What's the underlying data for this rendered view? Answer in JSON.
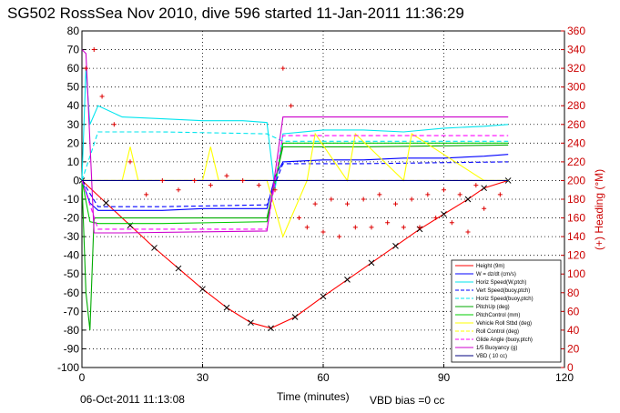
{
  "chart_data": {
    "type": "line",
    "title": "SG502 RossSea Nov 2010, dive 596 started 11-Jan-2011 11:36:29",
    "xlabel": "Time (minutes)",
    "ylabel": "",
    "y2label": "(+) Heading (°M)",
    "footer_left": "06-Oct-2011 11:13:08",
    "footer_right": "VBD bias =0 cc",
    "xlim": [
      0,
      120
    ],
    "ylim": [
      -100,
      80
    ],
    "y2lim": [
      0,
      360
    ],
    "xticks": [
      "0",
      "30",
      "60",
      "90",
      "120"
    ],
    "yticks": [
      "80",
      "70",
      "60",
      "50",
      "40",
      "30",
      "20",
      "10",
      "0",
      "-10",
      "-20",
      "-30",
      "-40",
      "-50",
      "-60",
      "-70",
      "-80",
      "-90",
      "-100"
    ],
    "y2ticks": [
      "360",
      "340",
      "320",
      "300",
      "280",
      "260",
      "240",
      "220",
      "200",
      "180",
      "160",
      "140",
      "120",
      "100",
      "80",
      "60",
      "40",
      "20",
      "0"
    ],
    "grid": true,
    "legend_position": "bottom-right",
    "series": [
      {
        "name": "Height (9m)",
        "color": "#ff0000",
        "style": "solid-marker",
        "x": [
          0,
          6,
          12,
          18,
          24,
          30,
          36,
          42,
          47,
          53,
          60,
          66,
          72,
          78,
          84,
          90,
          96,
          100,
          106
        ],
        "y": [
          0,
          -12,
          -24,
          -36,
          -47,
          -58,
          -68,
          -76,
          -79,
          -73,
          -62,
          -53,
          -44,
          -35,
          -26,
          -18,
          -10,
          -4,
          0
        ]
      },
      {
        "name": "W = dz/dt (cm/s)",
        "color": "#0000ff",
        "style": "solid",
        "x": [
          0,
          2,
          4,
          10,
          20,
          30,
          40,
          46,
          48,
          50,
          60,
          70,
          80,
          90,
          100,
          106
        ],
        "y": [
          0,
          -12,
          -16,
          -16,
          -16,
          -15,
          -15,
          -15,
          2,
          10,
          11,
          11,
          12,
          12,
          13,
          14
        ]
      },
      {
        "name": "Horiz Speed(W,ptch)",
        "color": "#00e5ee",
        "style": "solid",
        "x": [
          0,
          1,
          2,
          4,
          10,
          20,
          30,
          40,
          46,
          48,
          50,
          60,
          70,
          80,
          90,
          100,
          106
        ],
        "y": [
          0,
          60,
          30,
          40,
          34,
          33,
          32,
          32,
          31,
          -5,
          25,
          27,
          27,
          26,
          28,
          29,
          30
        ]
      },
      {
        "name": "Vert Speed(buoy,ptch)",
        "color": "#0000ff",
        "style": "dashed",
        "x": [
          0,
          4,
          20,
          46,
          50,
          70,
          106
        ],
        "y": [
          0,
          -14,
          -14,
          -13,
          9,
          9,
          10
        ]
      },
      {
        "name": "Horiz Speed(buoy,ptch)",
        "color": "#00e5ee",
        "style": "dashed",
        "x": [
          0,
          4,
          20,
          46,
          50,
          70,
          106
        ],
        "y": [
          0,
          26,
          26,
          25,
          21,
          21,
          21
        ]
      },
      {
        "name": "PitchUp (deg)",
        "color": "#00aa00",
        "style": "solid",
        "x": [
          0,
          1,
          2,
          3,
          10,
          30,
          46,
          50,
          70,
          106
        ],
        "y": [
          0,
          -60,
          -80,
          -20,
          -20,
          -20,
          -20,
          18,
          18,
          19
        ]
      },
      {
        "name": "PitchControl (mm)",
        "color": "#00cc00",
        "style": "solid",
        "x": [
          0,
          2,
          4,
          20,
          46,
          50,
          70,
          106
        ],
        "y": [
          0,
          -22,
          -23,
          -23,
          -22,
          20,
          20,
          20
        ]
      },
      {
        "name": "Vehicle Roll Stbd (deg)",
        "color": "#ffff00",
        "style": "solid",
        "x": [
          0,
          10,
          12,
          14,
          30,
          32,
          34,
          46,
          50,
          56,
          58,
          66,
          68,
          80,
          82,
          100,
          106
        ],
        "y": [
          0,
          0,
          18,
          0,
          0,
          18,
          0,
          0,
          -30,
          0,
          25,
          0,
          25,
          0,
          25,
          0,
          0
        ]
      },
      {
        "name": "Roll Control (deg)",
        "color": "#ffff00",
        "style": "dashed",
        "x": [
          0,
          106
        ],
        "y": [
          0,
          0
        ]
      },
      {
        "name": "Glide Angle (buoy,ptch)",
        "color": "#ff00ff",
        "style": "dashed",
        "x": [
          0,
          4,
          46,
          50,
          106
        ],
        "y": [
          0,
          -26,
          -26,
          24,
          24
        ]
      },
      {
        "name": "1/5 Buoyancy (g)",
        "color": "#cc00cc",
        "style": "solid",
        "x": [
          0,
          1,
          3,
          10,
          46,
          50,
          70,
          106
        ],
        "y": [
          70,
          68,
          -28,
          -28,
          -27,
          34,
          34,
          34
        ]
      },
      {
        "name": "VBD ( 10 cc)",
        "color": "#000080",
        "style": "solid",
        "x": [
          0,
          106
        ],
        "y": [
          0,
          0
        ]
      },
      {
        "name": "Heading",
        "axis": "right",
        "color": "#dd0000",
        "style": "plus",
        "x": [
          1,
          3,
          5,
          8,
          12,
          16,
          20,
          24,
          28,
          32,
          36,
          40,
          44,
          48,
          50,
          52,
          54,
          56,
          58,
          60,
          62,
          64,
          66,
          68,
          70,
          72,
          74,
          76,
          78,
          80,
          82,
          84,
          86,
          88,
          90,
          92,
          94,
          96,
          98,
          100,
          104
        ],
        "y": [
          320,
          340,
          290,
          260,
          220,
          185,
          200,
          190,
          200,
          195,
          205,
          200,
          195,
          190,
          320,
          280,
          160,
          150,
          175,
          145,
          180,
          140,
          175,
          150,
          180,
          150,
          185,
          155,
          175,
          150,
          180,
          150,
          185,
          160,
          190,
          155,
          185,
          145,
          195,
          170,
          185
        ]
      }
    ],
    "legend_entries": [
      "Height (9m)",
      "W = dz/dt (cm/s)",
      "Horiz Speed(W,ptch)",
      "Vert Speed(buoy,ptch)",
      "Horiz Speed(buoy,ptch)",
      "PitchUp (deg)",
      "PitchControl (mm)",
      "Vehicle Roll Stbd (deg)",
      "Roll Control (deg)",
      "Glide Angle (buoy,ptch)",
      "1/5 Buoyancy (g)",
      "VBD ( 10 cc)"
    ]
  }
}
